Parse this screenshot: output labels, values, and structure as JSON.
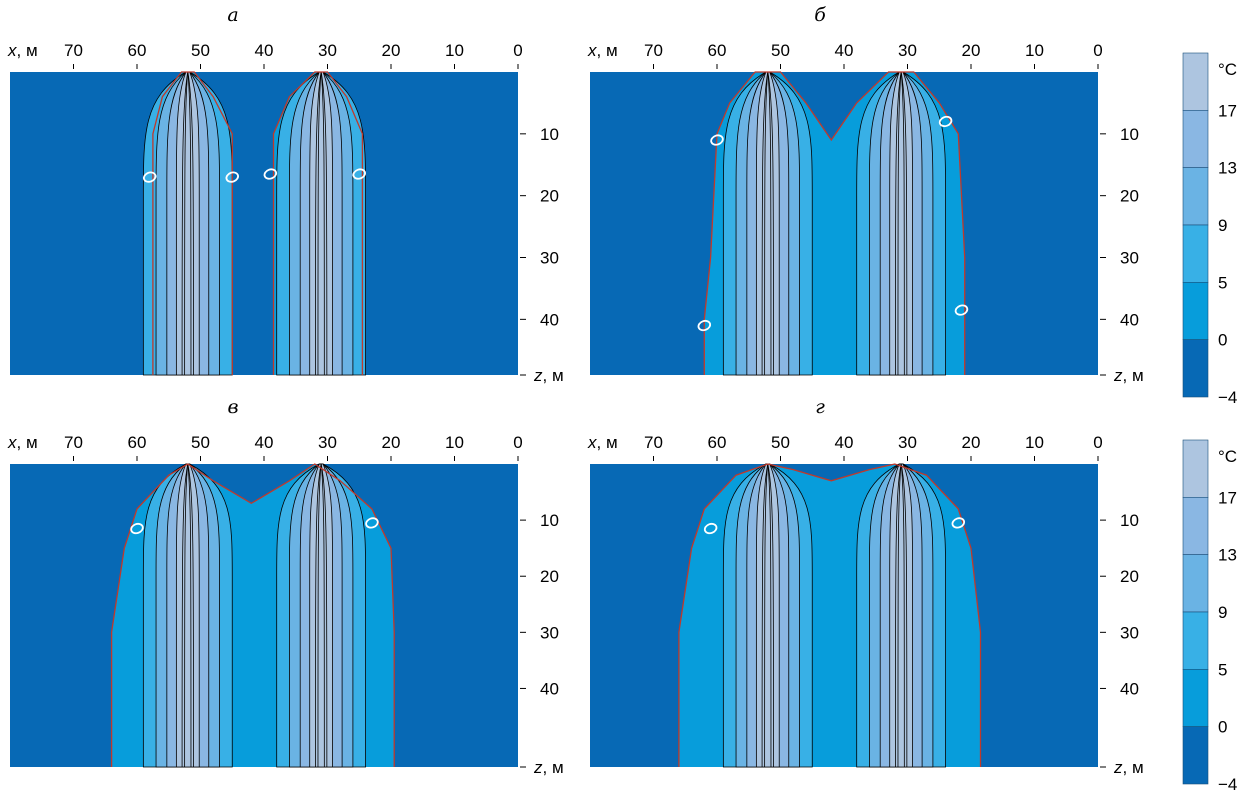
{
  "chart_data": [
    {
      "type": "heatmap",
      "title": "а",
      "xlabel_prefix": "x",
      "xlabel_unit": ", м",
      "zlabel_prefix": "z",
      "zlabel_unit": ", м",
      "x_ticks": [
        "70",
        "60",
        "50",
        "40",
        "30",
        "20",
        "10",
        "0"
      ],
      "x_tick_values": [
        70,
        60,
        50,
        40,
        30,
        20,
        10,
        0
      ],
      "z_ticks": [
        "10",
        "20",
        "30",
        "40"
      ],
      "z_tick_values": [
        10,
        20,
        30,
        40
      ],
      "xlim": [
        80,
        0
      ],
      "zlim": [
        0,
        49
      ],
      "sources_x": [
        52,
        31
      ],
      "source_spread_x": 0,
      "frozen_boundary": [
        [
          57.5,
          49
        ],
        [
          57.5,
          10
        ],
        [
          56,
          4
        ],
        [
          53,
          0
        ],
        [
          51,
          0
        ],
        [
          48,
          4
        ],
        [
          45,
          10
        ],
        [
          45,
          49
        ]
      ],
      "frozen_boundary_2": [
        [
          38.5,
          49
        ],
        [
          38.5,
          10
        ],
        [
          36,
          4
        ],
        [
          32,
          0
        ],
        [
          30,
          0
        ],
        [
          27,
          4
        ],
        [
          24.5,
          10
        ],
        [
          24.5,
          49
        ]
      ],
      "isotherm_label_points": [
        [
          58,
          17
        ],
        [
          45,
          17
        ],
        [
          39,
          16.5
        ],
        [
          25,
          16.5
        ]
      ],
      "isotherm_label": "0"
    },
    {
      "type": "heatmap",
      "title": "б",
      "xlabel_prefix": "x",
      "xlabel_unit": ", м",
      "zlabel_prefix": "z",
      "zlabel_unit": ", м",
      "x_ticks": [
        "70",
        "60",
        "50",
        "40",
        "30",
        "20",
        "10",
        "0"
      ],
      "x_tick_values": [
        70,
        60,
        50,
        40,
        30,
        20,
        10,
        0
      ],
      "z_ticks": [
        "10",
        "20",
        "30",
        "40"
      ],
      "z_tick_values": [
        10,
        20,
        30,
        40
      ],
      "xlim": [
        80,
        0
      ],
      "zlim": [
        0,
        49
      ],
      "sources_x": [
        52,
        31
      ],
      "frozen_boundary": [
        [
          62,
          49
        ],
        [
          62,
          40
        ],
        [
          61,
          30
        ],
        [
          60,
          10
        ],
        [
          58,
          5
        ],
        [
          54,
          0
        ],
        [
          50,
          0
        ],
        [
          46,
          5
        ],
        [
          42,
          11
        ],
        [
          38,
          5
        ],
        [
          33,
          0
        ],
        [
          29,
          0
        ],
        [
          25,
          5
        ],
        [
          22,
          10
        ],
        [
          21,
          30
        ],
        [
          21,
          49
        ]
      ],
      "isotherm_label_points": [
        [
          60,
          11
        ],
        [
          24,
          8
        ],
        [
          62,
          41
        ],
        [
          21.5,
          38.5
        ]
      ],
      "isotherm_label": "0"
    },
    {
      "type": "heatmap",
      "title": "в",
      "xlabel_prefix": "x",
      "xlabel_unit": ", м",
      "zlabel_prefix": "z",
      "zlabel_unit": ", м",
      "x_ticks": [
        "70",
        "60",
        "50",
        "40",
        "30",
        "20",
        "10",
        "0"
      ],
      "x_tick_values": [
        70,
        60,
        50,
        40,
        30,
        20,
        10,
        0
      ],
      "z_ticks": [
        "10",
        "20",
        "30",
        "40"
      ],
      "z_tick_values": [
        10,
        20,
        30,
        40
      ],
      "xlim": [
        80,
        0
      ],
      "zlim": [
        0,
        54
      ],
      "sources_x": [
        52,
        31
      ],
      "frozen_boundary": [
        [
          64,
          54
        ],
        [
          64,
          30
        ],
        [
          62,
          15
        ],
        [
          60,
          8
        ],
        [
          55,
          2
        ],
        [
          52,
          0
        ],
        [
          48,
          3
        ],
        [
          42,
          7
        ],
        [
          36,
          3
        ],
        [
          32,
          0
        ],
        [
          28,
          3
        ],
        [
          23,
          8
        ],
        [
          20,
          15
        ],
        [
          19.5,
          30
        ],
        [
          19.5,
          54
        ]
      ],
      "isotherm_label_points": [
        [
          60,
          11.5
        ],
        [
          23,
          10.5
        ]
      ],
      "isotherm_label": "0"
    },
    {
      "type": "heatmap",
      "title": "г",
      "xlabel_prefix": "x",
      "xlabel_unit": ", м",
      "zlabel_prefix": "z",
      "zlabel_unit": ", м",
      "x_ticks": [
        "70",
        "60",
        "50",
        "40",
        "30",
        "20",
        "10",
        "0"
      ],
      "x_tick_values": [
        70,
        60,
        50,
        40,
        30,
        20,
        10,
        0
      ],
      "z_ticks": [
        "10",
        "20",
        "30",
        "40"
      ],
      "z_tick_values": [
        10,
        20,
        30,
        40
      ],
      "xlim": [
        80,
        0
      ],
      "zlim": [
        0,
        54
      ],
      "sources_x": [
        52,
        31
      ],
      "frozen_boundary": [
        [
          66,
          54
        ],
        [
          66,
          30
        ],
        [
          64,
          15
        ],
        [
          62,
          8
        ],
        [
          57,
          2
        ],
        [
          52,
          0
        ],
        [
          48,
          1
        ],
        [
          42,
          3
        ],
        [
          36,
          1
        ],
        [
          32,
          0
        ],
        [
          27,
          2
        ],
        [
          22,
          8
        ],
        [
          20,
          15
        ],
        [
          18.5,
          30
        ],
        [
          18.5,
          54
        ]
      ],
      "isotherm_label_points": [
        [
          61,
          11.5
        ],
        [
          22,
          10.5
        ]
      ],
      "isotherm_label": "0"
    }
  ],
  "colorbar": {
    "unit": "°C",
    "levels": [
      "17",
      "13",
      "9",
      "5",
      "0",
      "−4"
    ],
    "level_values": [
      17,
      13,
      9,
      5,
      0,
      -4
    ],
    "colors": [
      "#adc5e0",
      "#8ab7e3",
      "#6ab3e4",
      "#38b0e6",
      "#079ddb",
      "#0769b5"
    ]
  },
  "colors": {
    "frozen": "#0769b5",
    "band_0_5": "#079ddb",
    "band_5_9": "#38b0e6",
    "band_9_13": "#6ab3e4",
    "band_13_17": "#8ab7e3",
    "band_17": "#adc5e0",
    "zero_isotherm": "#c0392b",
    "isoline": "#000000",
    "label_ring": "#ffffff"
  }
}
